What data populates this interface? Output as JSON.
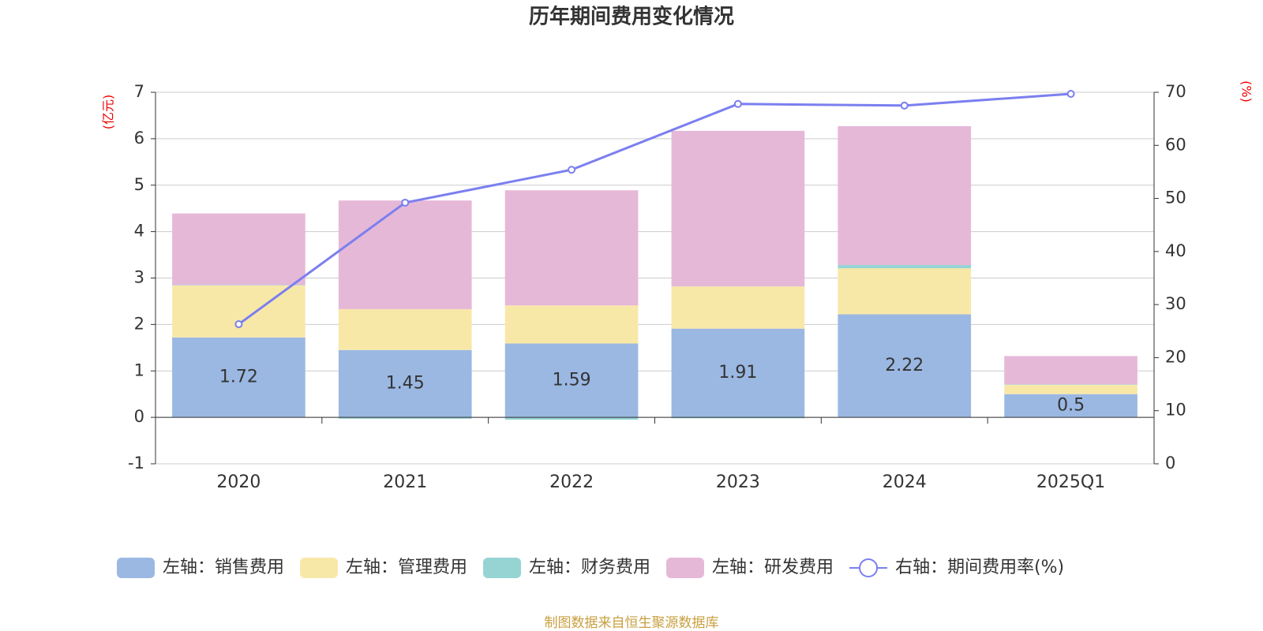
{
  "chart_data": {
    "type": "bar-line",
    "title": "历年期间费用变化情况",
    "y_label": "(亿元)",
    "y2_label": "(%)",
    "categories": [
      "2020",
      "2021",
      "2022",
      "2023",
      "2024",
      "2025Q1"
    ],
    "series": [
      {
        "name": "左轴：销售费用",
        "color": "#9bb8e3",
        "type": "bar",
        "show_labels": true,
        "values": [
          1.72,
          1.45,
          1.59,
          1.91,
          2.22,
          0.5
        ]
      },
      {
        "name": "左轴：管理费用",
        "color": "#f8e8a8",
        "type": "bar",
        "values": [
          1.12,
          0.88,
          0.82,
          0.91,
          0.99,
          0.2
        ]
      },
      {
        "name": "左轴：财务费用",
        "color": "#96d4d4",
        "type": "bar",
        "values": [
          0.01,
          -0.03,
          -0.05,
          -0.02,
          0.07,
          0.01
        ]
      },
      {
        "name": "左轴：研发费用",
        "color": "#e6b8d8",
        "type": "bar",
        "values": [
          1.54,
          2.34,
          2.48,
          3.35,
          2.99,
          0.61
        ]
      },
      {
        "name": "右轴：期间费用率(%)",
        "color": "#7b7fef",
        "type": "line",
        "axis": "y2",
        "values": [
          26.3,
          49.2,
          55.4,
          67.8,
          67.5,
          69.7
        ]
      }
    ],
    "ylim": [
      -1,
      7
    ],
    "yticks": [
      -1,
      0,
      1,
      2,
      3,
      4,
      5,
      6,
      7
    ],
    "y2lim": [
      0,
      70
    ],
    "y2ticks": [
      0,
      10,
      20,
      30,
      40,
      50,
      60,
      70
    ],
    "grid": true,
    "source": "制图数据来自恒生聚源数据库"
  }
}
